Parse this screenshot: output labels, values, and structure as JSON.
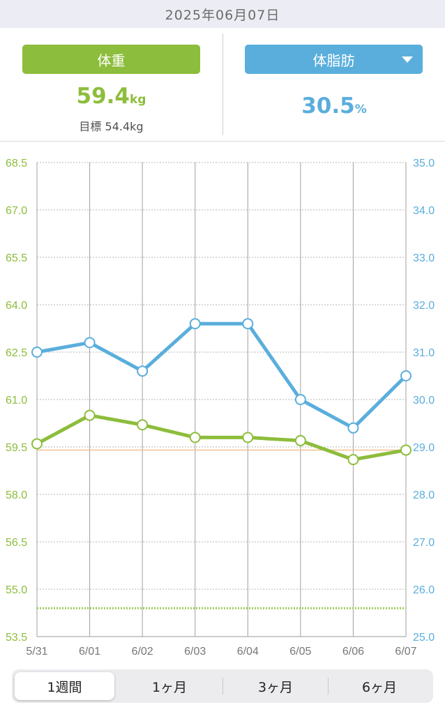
{
  "date_header": "2025年06月07日",
  "weight": {
    "label": "体重",
    "value": "59.4",
    "unit": "kg",
    "target_label": "目標",
    "target_value": "54.4kg",
    "color": "#8dbd3c"
  },
  "body_fat": {
    "label": "体脂肪",
    "value": "30.5",
    "unit": "%",
    "color": "#5aaedc"
  },
  "chart_data": {
    "type": "line",
    "categories": [
      "5/31",
      "6/01",
      "6/02",
      "6/03",
      "6/04",
      "6/05",
      "6/06",
      "6/07"
    ],
    "left_axis": {
      "ticks": [
        "68.5",
        "67.0",
        "65.5",
        "64.0",
        "62.5",
        "61.0",
        "59.5",
        "58.0",
        "56.5",
        "55.0",
        "53.5"
      ],
      "ylim": [
        53.5,
        68.5
      ],
      "color": "#8dbd3c"
    },
    "right_axis": {
      "ticks": [
        "35.0",
        "34.0",
        "33.0",
        "32.0",
        "31.0",
        "30.0",
        "29.0",
        "28.0",
        "27.0",
        "26.0",
        "25.0"
      ],
      "ylim": [
        25.0,
        35.0
      ],
      "color": "#5aaedc"
    },
    "series": [
      {
        "key": "weight",
        "axis": "left",
        "color": "#8dbd3c",
        "values": [
          59.6,
          60.5,
          60.2,
          59.8,
          59.8,
          59.7,
          59.1,
          59.4
        ]
      },
      {
        "key": "body_fat",
        "axis": "right",
        "color": "#5aaedc",
        "values": [
          31.0,
          31.2,
          30.6,
          31.6,
          31.6,
          30.0,
          29.4,
          30.5
        ]
      }
    ],
    "reference_lines": [
      {
        "axis": "left",
        "value": 59.4,
        "style": "solid",
        "color": "#f0c090"
      },
      {
        "axis": "left",
        "value": 54.4,
        "style": "dotted",
        "color": "#9ccb55"
      }
    ],
    "grid": true
  },
  "period_tabs": [
    {
      "label": "1週間",
      "active": true
    },
    {
      "label": "1ヶ月",
      "active": false
    },
    {
      "label": "3ヶ月",
      "active": false
    },
    {
      "label": "6ヶ月",
      "active": false
    }
  ]
}
